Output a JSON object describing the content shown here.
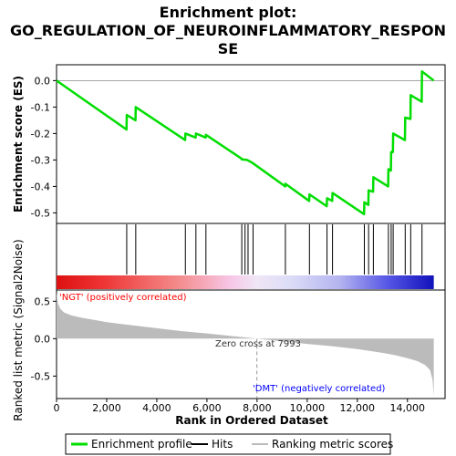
{
  "title_lines": [
    "Enrichment plot:",
    "GO_REGULATION_OF_NEUROINFLAMMATORY_RESPON",
    "SE"
  ],
  "colors": {
    "profile": "#00dd00",
    "hits": "#000000",
    "ranking_fill": "#bbbbbb",
    "positive_label": "#ff0000",
    "negative_label": "#0000ff",
    "zero_cross_line": "#999999"
  },
  "chart_data": [
    {
      "type": "line",
      "panel": "enrichment-profile",
      "ylabel": "Enrichment score (ES)",
      "ylim": [
        -0.54,
        0.06
      ],
      "y_ticks": [
        0.0,
        -0.1,
        -0.2,
        -0.3,
        -0.4,
        -0.5
      ],
      "y_tick_labels": [
        "0.0",
        "-0.1",
        "-0.2",
        "-0.3",
        "-0.4",
        "-0.5"
      ],
      "grid": false,
      "series": [
        {
          "name": "Enrichment profile",
          "x": [
            0,
            2790,
            2800,
            3150,
            3160,
            5130,
            5140,
            5550,
            5560,
            5950,
            5960,
            7380,
            7390,
            7600,
            7800,
            9120,
            9130,
            10080,
            10090,
            10780,
            10790,
            11000,
            11010,
            12270,
            12280,
            12440,
            12450,
            12630,
            12640,
            13230,
            13240,
            13340,
            13350,
            13420,
            13430,
            13900,
            13910,
            14120,
            14130,
            14570,
            14580,
            15050
          ],
          "y": [
            0.0,
            -0.185,
            -0.13,
            -0.15,
            -0.1,
            -0.225,
            -0.2,
            -0.215,
            -0.2,
            -0.215,
            -0.205,
            -0.295,
            -0.298,
            -0.3,
            -0.31,
            -0.4,
            -0.39,
            -0.455,
            -0.43,
            -0.475,
            -0.445,
            -0.455,
            -0.425,
            -0.505,
            -0.46,
            -0.47,
            -0.415,
            -0.42,
            -0.365,
            -0.4,
            -0.335,
            -0.34,
            -0.27,
            -0.27,
            -0.2,
            -0.225,
            -0.14,
            -0.145,
            -0.055,
            -0.08,
            0.035,
            0.0
          ]
        }
      ]
    },
    {
      "type": "scatter",
      "panel": "hits",
      "series": [
        {
          "name": "Hits",
          "x": [
            2800,
            3160,
            5140,
            5560,
            5960,
            7390,
            7520,
            7640,
            7840,
            9130,
            10090,
            10790,
            11010,
            12280,
            12450,
            12640,
            13240,
            13350,
            13430,
            13910,
            14130,
            14580
          ]
        }
      ]
    },
    {
      "type": "area",
      "panel": "ranking-metric",
      "xlabel": "Rank in Ordered Dataset",
      "ylabel": "Ranked list metric (Signal2Noise)",
      "xlim": [
        0,
        15500
      ],
      "ylim": [
        -0.8,
        0.65
      ],
      "x_ticks": [
        0,
        2000,
        4000,
        6000,
        8000,
        10000,
        12000,
        14000
      ],
      "x_tick_labels": [
        "0",
        "2,000",
        "4,000",
        "6,000",
        "8,000",
        "10,000",
        "12,000",
        "14,000"
      ],
      "y_ticks": [
        0.5,
        0.0,
        -0.5
      ],
      "y_tick_labels": [
        "0.5",
        "0.0",
        "-0.5"
      ],
      "series": [
        {
          "name": "Ranking metric scores",
          "x": [
            0,
            60,
            150,
            300,
            600,
            1000,
            1500,
            2000,
            3000,
            4000,
            5000,
            6000,
            7000,
            7993,
            9000,
            10000,
            11000,
            12000,
            13000,
            13500,
            14000,
            14400,
            14700,
            14900,
            15000,
            15050
          ],
          "y": [
            0.62,
            0.47,
            0.4,
            0.35,
            0.31,
            0.28,
            0.25,
            0.22,
            0.18,
            0.14,
            0.1,
            0.07,
            0.035,
            0.0,
            -0.035,
            -0.07,
            -0.1,
            -0.14,
            -0.19,
            -0.22,
            -0.26,
            -0.3,
            -0.35,
            -0.42,
            -0.55,
            -0.77
          ]
        }
      ],
      "annotations": {
        "positive": "'NGT' (positively correlated)",
        "zero_cross": "Zero cross at 7993",
        "negative": "'DMT' (negatively correlated)"
      },
      "zero_cross_rank": 7993
    }
  ],
  "legend": {
    "items": [
      {
        "label": "Enrichment profile",
        "kind": "line"
      },
      {
        "label": "Hits",
        "kind": "line"
      },
      {
        "label": "Ranking metric scores",
        "kind": "line"
      }
    ]
  }
}
